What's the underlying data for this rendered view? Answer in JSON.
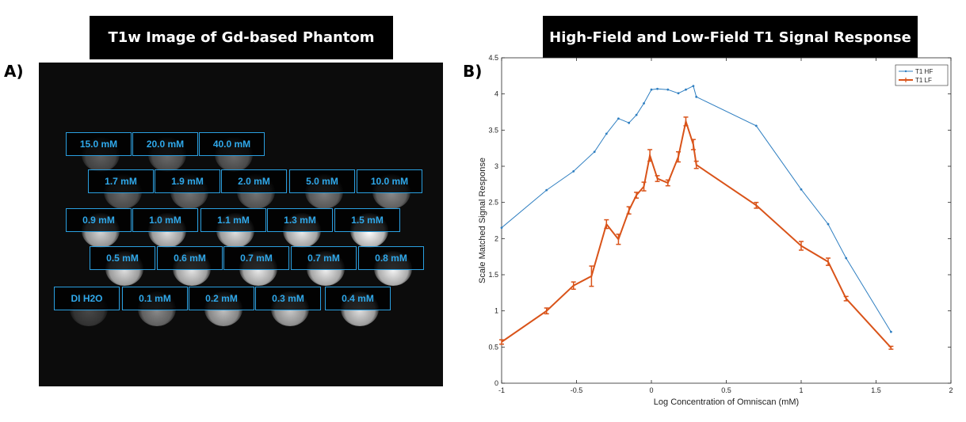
{
  "panel_a": {
    "letter": "A)",
    "title": "T1w Image of Gd-based Phantom",
    "rows": [
      [
        "15.0 mM",
        "20.0 mM",
        "40.0 mM"
      ],
      [
        "1.7 mM",
        "1.9 mM",
        "2.0 mM",
        "5.0  mM",
        "10.0 mM"
      ],
      [
        "0.9 mM",
        "1.0 mM",
        "1.1 mM",
        "1.3 mM",
        "1.5 mM"
      ],
      [
        "0.5 mM",
        "0.6 mM",
        "0.7 mM",
        "0.7 mM",
        "0.8 mM"
      ],
      [
        "DI H2O",
        "0.1 mM",
        "0.2 mM",
        "0.3 mM",
        "0.4 mM"
      ]
    ]
  },
  "panel_b": {
    "letter": "B)",
    "title": "High-Field and Low-Field T1 Signal Response"
  },
  "chart_data": {
    "type": "line",
    "title": "High-Field and Low-Field T1 Signal Response",
    "xlabel": "Log Concentration of Omniscan (mM)",
    "ylabel": "Scale Matched Signal Response",
    "xlim": [
      -1,
      2
    ],
    "ylim": [
      0,
      4.5
    ],
    "xticks": [
      -1,
      -0.5,
      0,
      0.5,
      1,
      1.5,
      2
    ],
    "yticks": [
      0,
      0.5,
      1,
      1.5,
      2,
      2.5,
      3,
      3.5,
      4,
      4.5
    ],
    "grid": false,
    "legend_position": "top-right",
    "series": [
      {
        "name": "T1 HF",
        "color": "#2f7fc1",
        "x": [
          -1,
          -0.7,
          -0.52,
          -0.38,
          -0.3,
          -0.22,
          -0.15,
          -0.1,
          -0.05,
          0,
          0.04,
          0.11,
          0.18,
          0.23,
          0.28,
          0.3,
          0.7,
          1,
          1.18,
          1.3,
          1.6
        ],
        "y": [
          2.15,
          2.67,
          2.93,
          3.2,
          3.45,
          3.66,
          3.6,
          3.71,
          3.87,
          4.06,
          4.07,
          4.06,
          4.01,
          4.06,
          4.11,
          3.96,
          3.56,
          2.68,
          2.2,
          1.73,
          0.71
        ]
      },
      {
        "name": "T1 LF",
        "color": "#d95319",
        "x": [
          -1,
          -0.7,
          -0.52,
          -0.4,
          -0.3,
          -0.22,
          -0.15,
          -0.1,
          -0.05,
          -0.01,
          0.04,
          0.11,
          0.18,
          0.23,
          0.28,
          0.3,
          0.7,
          1,
          1.18,
          1.3,
          1.6
        ],
        "y": [
          0.57,
          1.0,
          1.35,
          1.48,
          2.2,
          1.99,
          2.39,
          2.6,
          2.72,
          3.15,
          2.83,
          2.77,
          3.13,
          3.62,
          3.3,
          3.02,
          2.46,
          1.9,
          1.68,
          1.17,
          0.49
        ],
        "error": [
          0.03,
          0.04,
          0.05,
          0.14,
          0.06,
          0.07,
          0.05,
          0.04,
          0.06,
          0.08,
          0.04,
          0.04,
          0.07,
          0.06,
          0.07,
          0.05,
          0.04,
          0.06,
          0.05,
          0.03,
          0.02
        ]
      }
    ]
  }
}
